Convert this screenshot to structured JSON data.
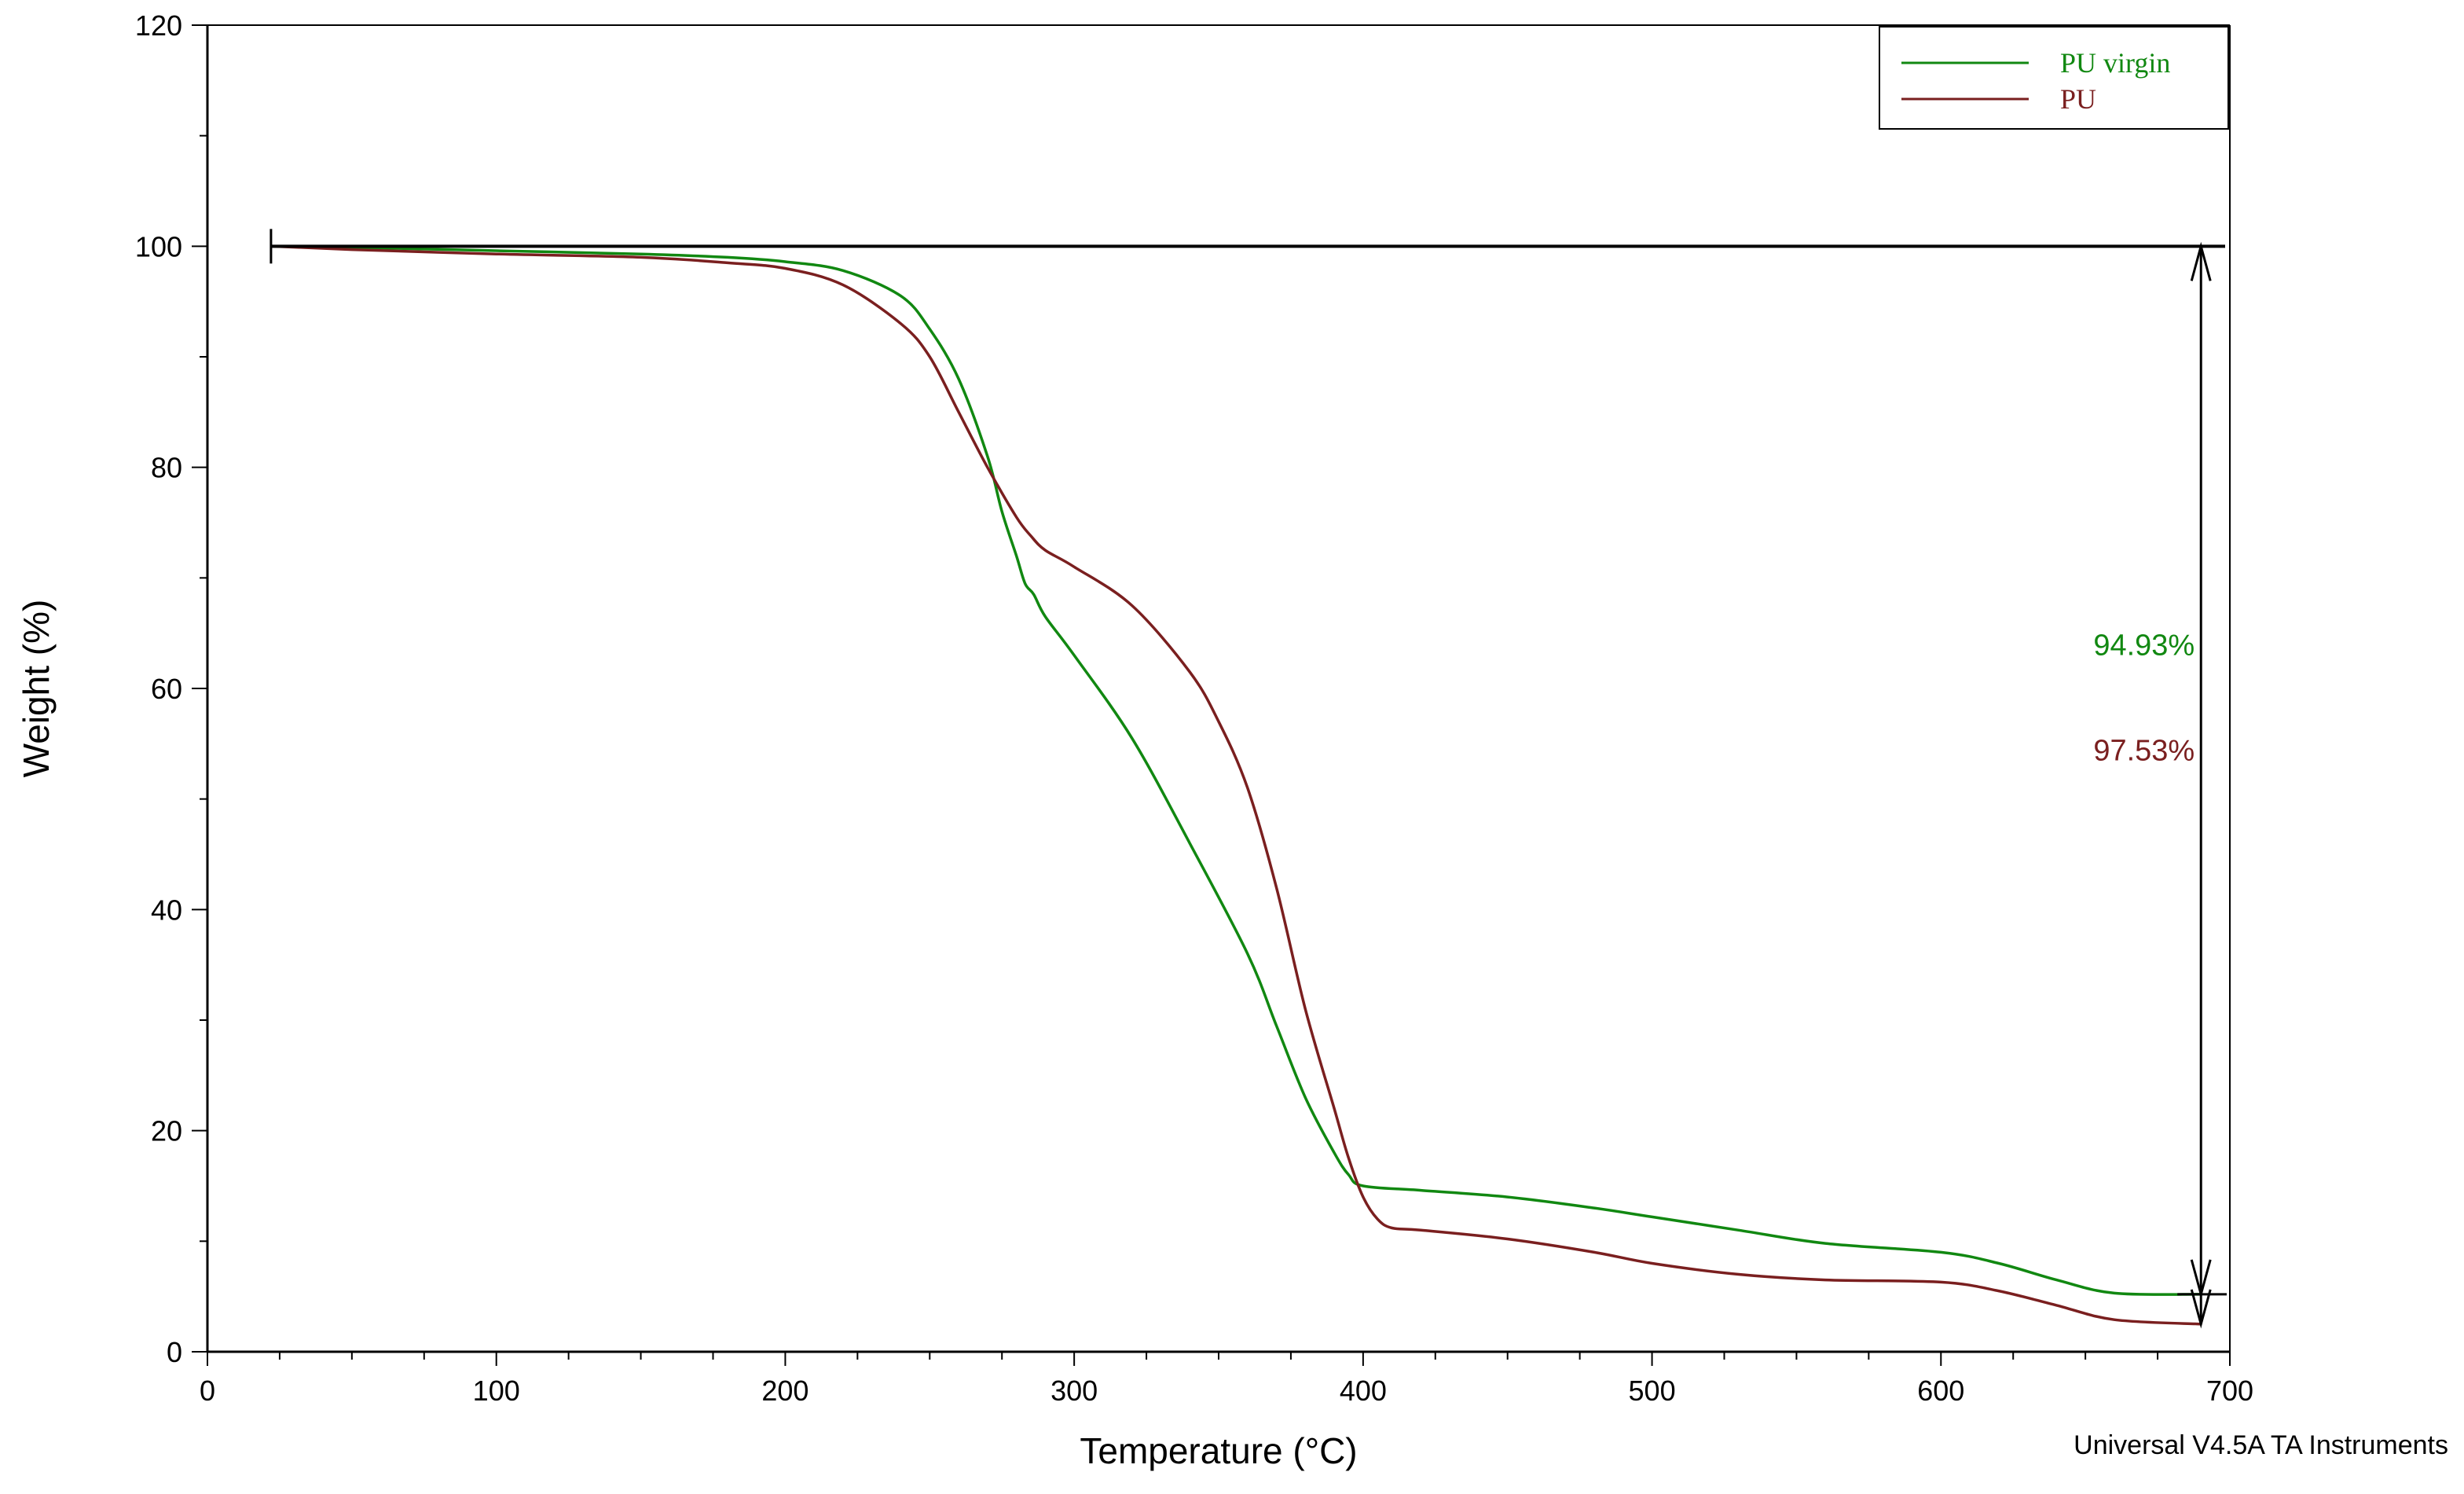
{
  "chart_data": {
    "type": "line",
    "xlabel": "Temperature (°C)",
    "ylabel": "Weight (%)",
    "xlim": [
      0,
      700
    ],
    "ylim": [
      0,
      120
    ],
    "xticks": [
      0,
      100,
      200,
      300,
      400,
      500,
      600,
      700
    ],
    "yticks": [
      0,
      20,
      40,
      60,
      80,
      100,
      120
    ],
    "grid": false,
    "legend_position": "top-right",
    "reference_line_y": 100,
    "series": [
      {
        "name": "PU virgin",
        "color": "#118811",
        "x": [
          22,
          50,
          100,
          150,
          180,
          200,
          220,
          240,
          250,
          260,
          270,
          275,
          280,
          283,
          286,
          290,
          300,
          320,
          340,
          360,
          370,
          380,
          390,
          395,
          400,
          420,
          450,
          480,
          500,
          530,
          560,
          600,
          620,
          640,
          660,
          690
        ],
        "y": [
          100,
          99.9,
          99.6,
          99.3,
          99.0,
          98.6,
          97.8,
          95.5,
          92.5,
          88.0,
          81.0,
          76.0,
          72.0,
          69.5,
          68.5,
          66.5,
          63.0,
          55.5,
          46.0,
          36.0,
          29.5,
          23.0,
          18.0,
          16.0,
          15.0,
          14.6,
          14.0,
          13.0,
          12.2,
          11.0,
          9.8,
          9.0,
          8.0,
          6.5,
          5.3,
          5.2
        ]
      },
      {
        "name": "PU",
        "color": "#7a1f1f",
        "x": [
          22,
          50,
          100,
          150,
          180,
          200,
          220,
          240,
          250,
          260,
          270,
          280,
          285,
          290,
          300,
          320,
          340,
          350,
          360,
          370,
          380,
          390,
          395,
          400,
          405,
          410,
          420,
          450,
          480,
          500,
          530,
          560,
          600,
          620,
          640,
          660,
          690
        ],
        "y": [
          100,
          99.7,
          99.3,
          99.0,
          98.5,
          98.0,
          96.5,
          93.0,
          90.0,
          85.0,
          80.0,
          75.5,
          73.8,
          72.5,
          71.0,
          67.5,
          61.5,
          57.0,
          51.0,
          42.0,
          31.0,
          22.0,
          17.5,
          14.0,
          12.0,
          11.2,
          11.0,
          10.2,
          9.0,
          8.0,
          7.0,
          6.5,
          6.3,
          5.5,
          4.2,
          2.9,
          2.5
        ]
      }
    ],
    "annotations": [
      {
        "text": "94.93%",
        "color": "#118811",
        "x": 690,
        "y": 64
      },
      {
        "text": "97.53%",
        "color": "#7a1f1f",
        "x": 690,
        "y": 54.5
      }
    ],
    "measure_arrow_x": 690,
    "footer": "Universal V4.5A TA Instruments"
  }
}
